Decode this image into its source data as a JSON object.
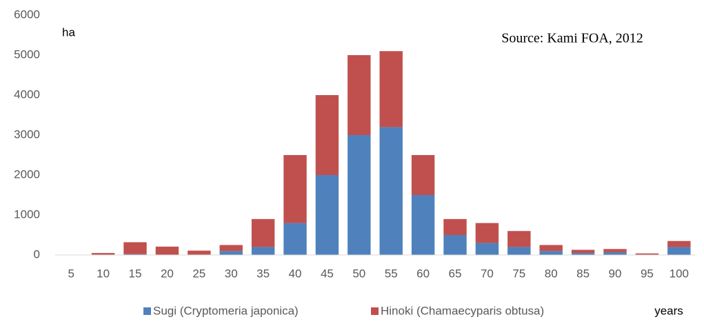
{
  "chart_data": {
    "type": "stacked_bar",
    "y_label": "ha",
    "x_label": "years",
    "annotation": "Source: Kami FOA, 2012",
    "categories": [
      "5",
      "10",
      "15",
      "20",
      "25",
      "30",
      "35",
      "40",
      "45",
      "50",
      "55",
      "60",
      "65",
      "70",
      "75",
      "80",
      "85",
      "90",
      "95",
      "100"
    ],
    "series": [
      {
        "name": "Sugi (Cryptomeria japonica)",
        "color": "#4f81bd",
        "values": [
          0,
          10,
          20,
          10,
          10,
          100,
          200,
          800,
          2000,
          3000,
          3200,
          1500,
          500,
          300,
          200,
          100,
          50,
          70,
          10,
          200
        ]
      },
      {
        "name": "Hinoki (Chamaecyparis obtusa)",
        "color": "#c0504d",
        "values": [
          0,
          40,
          300,
          200,
          100,
          150,
          700,
          1700,
          2000,
          2000,
          1900,
          1000,
          400,
          500,
          400,
          150,
          80,
          80,
          30,
          150
        ]
      }
    ],
    "ylim": [
      0,
      6000
    ],
    "yticks": [
      0,
      1000,
      2000,
      3000,
      4000,
      5000,
      6000
    ],
    "grid": false
  }
}
